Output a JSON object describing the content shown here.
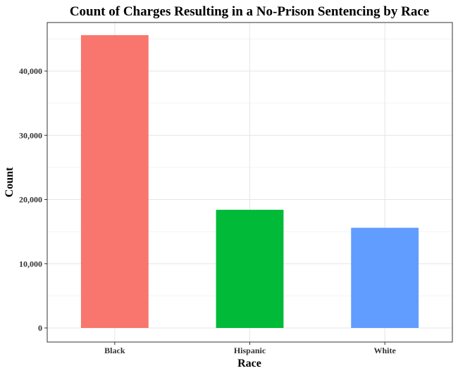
{
  "chart_data": {
    "type": "bar",
    "title": "Count of Charges Resulting in a No-Prison Sentencing by Race",
    "xlabel": "Race",
    "ylabel": "Count",
    "categories": [
      "Black",
      "Hispanic",
      "White"
    ],
    "values": [
      45600,
      18400,
      15600
    ],
    "colors": [
      "#F8766D",
      "#00BA38",
      "#619CFF"
    ],
    "ylim": [
      0,
      47880
    ],
    "yticks": [
      0,
      10000,
      20000,
      30000,
      40000
    ],
    "ytick_labels": [
      "0",
      "10,000",
      "20,000",
      "30,000",
      "40,000"
    ],
    "grid": true,
    "legend": "none"
  }
}
